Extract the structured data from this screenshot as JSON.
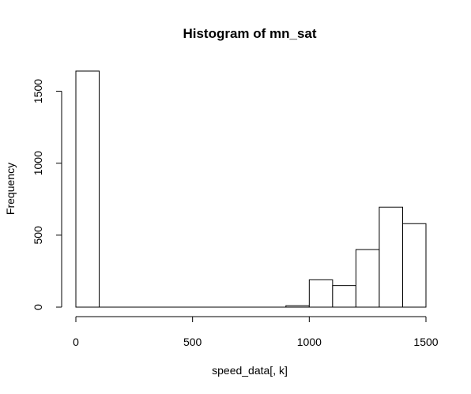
{
  "chart_data": {
    "type": "bar",
    "subtype": "histogram",
    "title": "Histogram of mn_sat",
    "xlabel": "speed_data[, k]",
    "ylabel": "Frequency",
    "bin_edges": [
      0,
      100,
      200,
      300,
      400,
      500,
      600,
      700,
      800,
      900,
      1000,
      1100,
      1200,
      1300,
      1400,
      1500
    ],
    "values": [
      1640,
      0,
      0,
      0,
      0,
      0,
      0,
      0,
      0,
      10,
      190,
      150,
      400,
      695,
      580
    ],
    "xlim": [
      0,
      1500
    ],
    "ylim": [
      0,
      1640
    ],
    "x_ticks": [
      0,
      500,
      1000,
      1500
    ],
    "y_ticks": [
      0,
      500,
      1000,
      1500
    ],
    "grid": false,
    "legend": "none"
  }
}
